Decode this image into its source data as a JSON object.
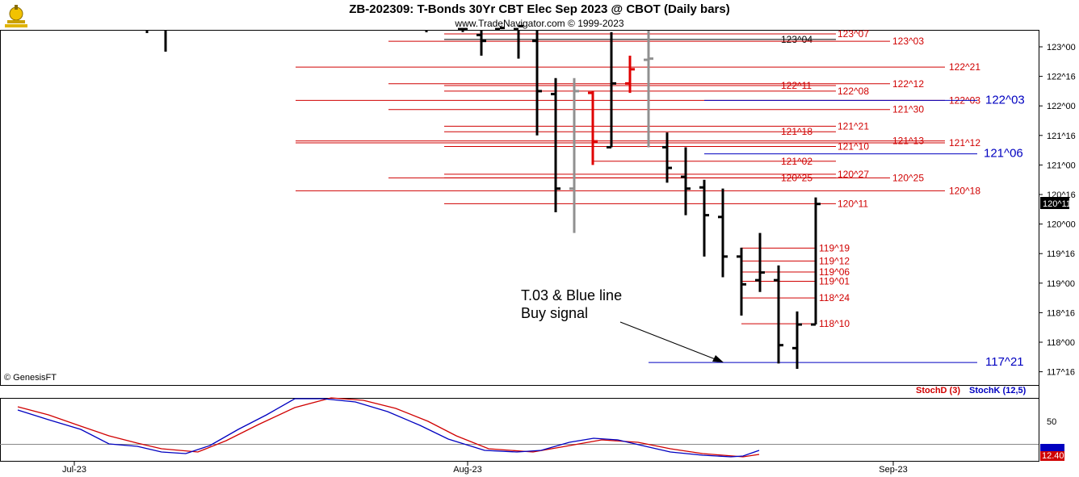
{
  "header": {
    "title": "ZB-202309:  T-Bonds 30Yr CBT Elec Sep 2023 @ CBOT  (Daily bars)",
    "subtitle": "www.TradeNavigator.com © 1999-2023"
  },
  "copyright": "© GenesisFT",
  "annotation": {
    "line1": "T.03 & Blue line",
    "line2": "Buy signal"
  },
  "indicator": {
    "legend_d": "StochD (3)",
    "legend_k": "StochK (12,5)",
    "level_label": "50",
    "last_value_label": "12.40",
    "colors": {
      "stochD": "#d00000",
      "stochK": "#0000c0"
    }
  },
  "colors": {
    "level_red": "#d00000",
    "level_blue": "#0000c0",
    "bar_black": "#000000",
    "bar_red": "#e00000",
    "bar_gray": "#909090"
  },
  "chart_data": {
    "type": "ohlc",
    "price_units": "32nds",
    "y_ticks": [
      "123^00",
      "122^16",
      "122^00",
      "121^16",
      "121^00",
      "120^16",
      "120^00",
      "119^16",
      "119^00",
      "118^16",
      "118^00",
      "117^16"
    ],
    "x_ticks": [
      "Jul-23",
      "Aug-23",
      "Sep-23"
    ],
    "current_price_label": "120^11",
    "level_lines": [
      {
        "label": "123^07",
        "color": "red"
      },
      {
        "label": "123^04",
        "color": "black"
      },
      {
        "label": "123^03",
        "color": "red"
      },
      {
        "label": "122^21",
        "color": "red"
      },
      {
        "label": "122^12",
        "color": "red"
      },
      {
        "label": "122^11",
        "color": "red"
      },
      {
        "label": "122^08",
        "color": "red"
      },
      {
        "label": "122^03",
        "color": "red"
      },
      {
        "label": "122^03",
        "color": "blue"
      },
      {
        "label": "121^30",
        "color": "red"
      },
      {
        "label": "121^21",
        "color": "red"
      },
      {
        "label": "121^18",
        "color": "red"
      },
      {
        "label": "121^13",
        "color": "red"
      },
      {
        "label": "121^12",
        "color": "red"
      },
      {
        "label": "121^10",
        "color": "red"
      },
      {
        "label": "121^06",
        "color": "blue"
      },
      {
        "label": "121^02",
        "color": "red"
      },
      {
        "label": "120^27",
        "color": "red"
      },
      {
        "label": "120^25",
        "color": "red"
      },
      {
        "label": "120^25",
        "color": "red"
      },
      {
        "label": "120^18",
        "color": "red"
      },
      {
        "label": "120^11",
        "color": "red"
      },
      {
        "label": "119^19",
        "color": "red"
      },
      {
        "label": "119^12",
        "color": "red"
      },
      {
        "label": "119^06",
        "color": "red"
      },
      {
        "label": "119^01",
        "color": "red"
      },
      {
        "label": "118^24",
        "color": "red"
      },
      {
        "label": "118^10",
        "color": "red"
      },
      {
        "label": "117^21",
        "color": "blue"
      }
    ],
    "level_values": [
      123.219,
      123.125,
      123.094,
      122.656,
      122.375,
      122.344,
      122.25,
      122.094,
      122.094,
      121.938,
      121.656,
      121.563,
      121.406,
      121.375,
      121.313,
      121.188,
      121.063,
      120.844,
      120.781,
      120.781,
      120.563,
      120.344,
      119.594,
      119.375,
      119.188,
      119.031,
      118.75,
      118.313,
      117.656
    ],
    "bars": [
      {
        "o": 123.3,
        "h": 123.4,
        "l": 123.25,
        "c": 123.3,
        "color": "black"
      },
      {
        "o": 123.2,
        "h": 123.35,
        "l": 122.85,
        "c": 123.1,
        "color": "black"
      },
      {
        "o": 123.3,
        "h": 123.4,
        "l": 123.28,
        "c": 123.32,
        "color": "black"
      },
      {
        "o": 123.3,
        "h": 123.4,
        "l": 122.8,
        "c": 123.35,
        "color": "black"
      },
      {
        "o": 123.1,
        "h": 123.3,
        "l": 121.5,
        "c": 122.25,
        "color": "black"
      },
      {
        "o": 122.2,
        "h": 122.47,
        "l": 120.2,
        "c": 120.6,
        "color": "black"
      },
      {
        "o": 120.6,
        "h": 122.47,
        "l": 119.85,
        "c": 122.25,
        "color": "gray"
      },
      {
        "o": 122.22,
        "h": 122.25,
        "l": 121.0,
        "c": 121.4,
        "color": "red"
      },
      {
        "o": 121.3,
        "h": 123.25,
        "l": 121.3,
        "c": 122.38,
        "color": "black"
      },
      {
        "o": 122.38,
        "h": 122.85,
        "l": 122.22,
        "c": 122.62,
        "color": "red"
      },
      {
        "o": 122.78,
        "h": 123.5,
        "l": 121.3,
        "c": 122.8,
        "color": "gray"
      },
      {
        "o": 121.3,
        "h": 121.55,
        "l": 120.7,
        "c": 120.95,
        "color": "black"
      },
      {
        "o": 120.8,
        "h": 121.3,
        "l": 120.15,
        "c": 120.6,
        "color": "black"
      },
      {
        "o": 120.62,
        "h": 120.75,
        "l": 119.45,
        "c": 120.15,
        "color": "black"
      },
      {
        "o": 120.12,
        "h": 120.6,
        "l": 119.1,
        "c": 119.45,
        "color": "black"
      },
      {
        "o": 119.45,
        "h": 119.6,
        "l": 118.45,
        "c": 118.98,
        "color": "black"
      },
      {
        "o": 119.05,
        "h": 119.85,
        "l": 118.85,
        "c": 119.18,
        "color": "black"
      },
      {
        "o": 119.05,
        "h": 119.3,
        "l": 117.64,
        "c": 117.95,
        "color": "black"
      },
      {
        "o": 117.9,
        "h": 118.52,
        "l": 117.55,
        "c": 118.3,
        "color": "black"
      },
      {
        "o": 118.3,
        "h": 120.45,
        "l": 118.3,
        "c": 120.34,
        "color": "black"
      }
    ]
  }
}
